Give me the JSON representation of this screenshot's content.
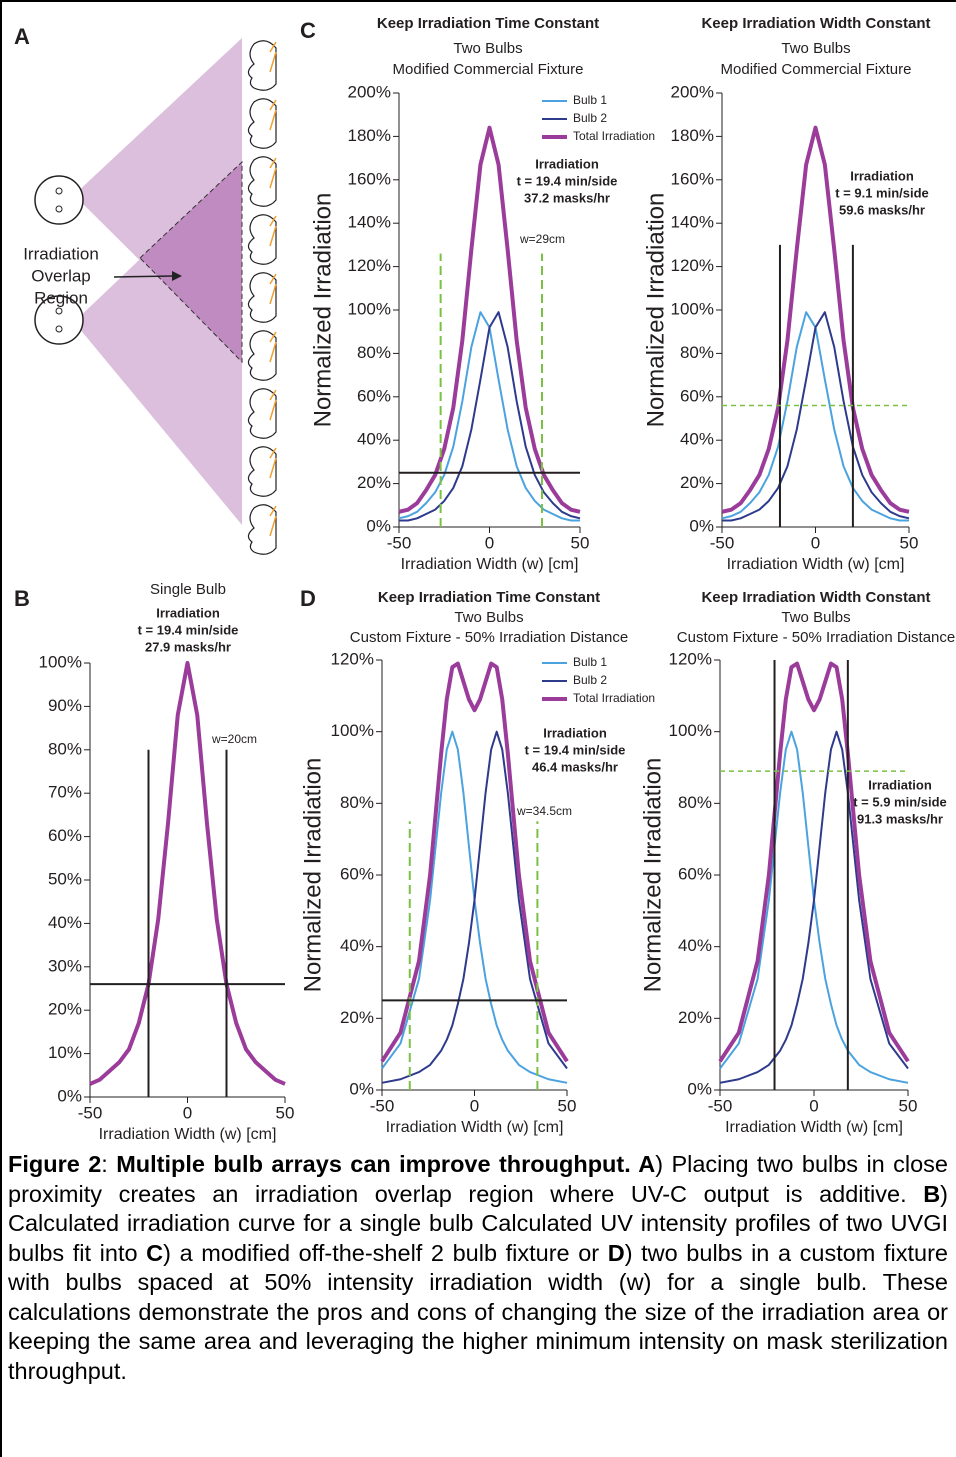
{
  "panel_labels": [
    "A",
    "B",
    "C",
    "D"
  ],
  "diagram": {
    "label": [
      "Irradiation",
      "Overlap",
      "Region"
    ]
  },
  "chart_data": [
    {
      "type": "line",
      "title": "Single Bulb",
      "annotation": [
        "Irradiation",
        "t = 19.4 min/side",
        "27.9 masks/hr"
      ],
      "width_label": "w=20cm",
      "x": [
        -50,
        -45,
        -40,
        -35,
        -30,
        -25,
        -20,
        -15,
        -10,
        -5,
        0,
        5,
        10,
        15,
        20,
        25,
        30,
        35,
        40,
        45,
        50
      ],
      "series": [
        {
          "color": "#9b3c9b",
          "values": [
            3,
            4,
            6,
            8,
            11,
            17,
            26,
            41,
            63,
            88,
            100,
            88,
            63,
            41,
            26,
            17,
            11,
            8,
            6,
            4,
            3
          ]
        }
      ],
      "xlim": [
        -50,
        50
      ],
      "xticks": [
        -50,
        0,
        50
      ],
      "ylim": [
        0,
        100
      ],
      "yticks": [
        {
          "value": 0,
          "label": "0%"
        },
        {
          "value": 10,
          "label": "10%"
        },
        {
          "value": 20,
          "label": "20%"
        },
        {
          "value": 30,
          "label": "30%"
        },
        {
          "value": 40,
          "label": "40%"
        },
        {
          "value": 50,
          "label": "50%"
        },
        {
          "value": 60,
          "label": "60%"
        },
        {
          "value": 70,
          "label": "70%"
        },
        {
          "value": 80,
          "label": "80%"
        },
        {
          "value": 90,
          "label": "90%"
        },
        {
          "value": 100,
          "label": "100%"
        }
      ],
      "xlabel": "Irradiation Width (w) [cm]",
      "legend": false,
      "vlines": {
        "x": [
          -20,
          20
        ],
        "top": 80,
        "color": "#231f20",
        "dashed": false
      },
      "hline": {
        "y": 26,
        "color": "#231f20",
        "dashed": false
      }
    },
    {
      "type": "line",
      "title": "Keep Irradiation Time Constant",
      "subtitle": [
        "Two Bulbs",
        "Modified Commercial Fixture"
      ],
      "annotation": [
        "Irradiation",
        "t = 19.4 min/side",
        "37.2 masks/hr"
      ],
      "width_label": "w=29cm",
      "x": [
        -50,
        -45,
        -40,
        -35,
        -30,
        -25,
        -20,
        -15,
        -10,
        -5,
        0,
        5,
        10,
        15,
        20,
        25,
        30,
        35,
        40,
        45,
        50
      ],
      "series": [
        {
          "name": "Bulb 1",
          "color": "#4aa3df",
          "values": [
            4,
            5,
            7,
            11,
            16,
            24,
            37,
            58,
            83,
            99,
            92,
            68,
            45,
            28,
            18,
            12,
            8,
            6,
            4,
            3,
            3
          ]
        },
        {
          "name": "Bulb 2",
          "color": "#2e3a8c",
          "values": [
            3,
            3,
            4,
            6,
            8,
            12,
            18,
            28,
            45,
            68,
            92,
            99,
            83,
            58,
            37,
            24,
            16,
            11,
            7,
            5,
            4
          ]
        },
        {
          "name": "Total Irradiation",
          "color": "#9b3c9b",
          "values": [
            7,
            8,
            11,
            17,
            24,
            36,
            55,
            86,
            128,
            167,
            184,
            167,
            128,
            86,
            55,
            36,
            24,
            17,
            11,
            8,
            7
          ]
        }
      ],
      "xlim": [
        -50,
        50
      ],
      "xticks": [
        -50,
        0,
        50
      ],
      "ylim": [
        0,
        200
      ],
      "yticks": [
        {
          "value": 0,
          "label": "0%"
        },
        {
          "value": 20,
          "label": "20%"
        },
        {
          "value": 40,
          "label": "40%"
        },
        {
          "value": 60,
          "label": "60%"
        },
        {
          "value": 80,
          "label": "80%"
        },
        {
          "value": 100,
          "label": "100%"
        },
        {
          "value": 120,
          "label": "120%"
        },
        {
          "value": 140,
          "label": "140%"
        },
        {
          "value": 160,
          "label": "160%"
        },
        {
          "value": 180,
          "label": "180%"
        },
        {
          "value": 200,
          "label": "200%"
        }
      ],
      "xlabel": "Irradiation Width (w) [cm]",
      "ylabel": "Normalized Irradiation",
      "legend": true,
      "vlines": {
        "x": [
          -27,
          29
        ],
        "top": 126,
        "color": "#7ac143",
        "dashed": true
      },
      "hline": {
        "y": 25,
        "color": "#231f20",
        "dashed": false
      }
    },
    {
      "type": "line",
      "title": "Keep Irradiation Width Constant",
      "subtitle": [
        "Two Bulbs",
        "Modified Commercial Fixture"
      ],
      "annotation": [
        "Irradiation",
        "t = 9.1 min/side",
        "59.6 masks/hr"
      ],
      "x": [
        -50,
        -45,
        -40,
        -35,
        -30,
        -25,
        -20,
        -15,
        -10,
        -5,
        0,
        5,
        10,
        15,
        20,
        25,
        30,
        35,
        40,
        45,
        50
      ],
      "series": [
        {
          "name": "Bulb 1",
          "color": "#4aa3df",
          "values": [
            4,
            5,
            7,
            11,
            16,
            24,
            37,
            58,
            83,
            99,
            92,
            68,
            45,
            28,
            18,
            12,
            8,
            6,
            4,
            3,
            3
          ]
        },
        {
          "name": "Bulb 2",
          "color": "#2e3a8c",
          "values": [
            3,
            3,
            4,
            6,
            8,
            12,
            18,
            28,
            45,
            68,
            92,
            99,
            83,
            58,
            37,
            24,
            16,
            11,
            7,
            5,
            4
          ]
        },
        {
          "name": "Total Irradiation",
          "color": "#9b3c9b",
          "values": [
            7,
            8,
            11,
            17,
            24,
            36,
            55,
            86,
            128,
            167,
            184,
            167,
            128,
            86,
            55,
            36,
            24,
            17,
            11,
            8,
            7
          ]
        }
      ],
      "xlim": [
        -50,
        50
      ],
      "xticks": [
        -50,
        0,
        50
      ],
      "ylim": [
        0,
        200
      ],
      "yticks": [
        {
          "value": 0,
          "label": "0%"
        },
        {
          "value": 20,
          "label": "20%"
        },
        {
          "value": 40,
          "label": "40%"
        },
        {
          "value": 60,
          "label": "60%"
        },
        {
          "value": 80,
          "label": "80%"
        },
        {
          "value": 100,
          "label": "100%"
        },
        {
          "value": 120,
          "label": "120%"
        },
        {
          "value": 140,
          "label": "140%"
        },
        {
          "value": 160,
          "label": "160%"
        },
        {
          "value": 180,
          "label": "180%"
        },
        {
          "value": 200,
          "label": "200%"
        }
      ],
      "xlabel": "Irradiation Width (w) [cm]",
      "ylabel": "Normalized Irradiation",
      "legend": false,
      "vlines": {
        "x": [
          -19,
          20
        ],
        "top": 130,
        "color": "#231f20",
        "dashed": false
      },
      "hline": {
        "y": 56,
        "color": "#7ac143",
        "dashed": true
      }
    },
    {
      "type": "line",
      "title": "Keep Irradiation Time Constant",
      "subtitle": [
        "Two Bulbs",
        "Custom Fixture - 50% Irradiation Distance"
      ],
      "annotation": [
        "Irradiation",
        "t = 19.4 min/side",
        "46.4 masks/hr"
      ],
      "width_label": "w=34.5cm",
      "x": [
        -50,
        -40,
        -30,
        -24,
        -18,
        -15,
        -12,
        -9,
        -6,
        -3,
        0,
        3,
        6,
        9,
        12,
        15,
        18,
        24,
        30,
        40,
        50
      ],
      "series": [
        {
          "name": "Bulb 1",
          "color": "#4aa3df",
          "values": [
            6,
            13,
            31,
            53,
            83,
            95,
            100,
            95,
            83,
            68,
            53,
            41,
            31,
            24,
            18,
            14,
            11,
            7,
            5,
            3,
            2
          ]
        },
        {
          "name": "Bulb 2",
          "color": "#2e3a8c",
          "values": [
            2,
            3,
            5,
            7,
            11,
            14,
            18,
            24,
            31,
            41,
            53,
            68,
            83,
            95,
            100,
            95,
            83,
            53,
            31,
            13,
            6
          ]
        },
        {
          "name": "Total Irradiation",
          "color": "#9b3c9b",
          "values": [
            8,
            16,
            36,
            60,
            94,
            109,
            118,
            119,
            114,
            109,
            106,
            109,
            114,
            119,
            118,
            109,
            94,
            60,
            36,
            16,
            8
          ]
        }
      ],
      "xlim": [
        -50,
        50
      ],
      "xticks": [
        -50,
        0,
        50
      ],
      "ylim": [
        0,
        120
      ],
      "yticks": [
        {
          "value": 0,
          "label": "0%"
        },
        {
          "value": 20,
          "label": "20%"
        },
        {
          "value": 40,
          "label": "40%"
        },
        {
          "value": 60,
          "label": "60%"
        },
        {
          "value": 80,
          "label": "80%"
        },
        {
          "value": 100,
          "label": "100%"
        },
        {
          "value": 120,
          "label": "120%"
        }
      ],
      "xlabel": "Irradiation Width (w) [cm]",
      "ylabel": "Normalized Irradiation",
      "legend": true,
      "vlines": {
        "x": [
          -35,
          34
        ],
        "top": 75,
        "color": "#7ac143",
        "dashed": true
      },
      "hline": {
        "y": 25,
        "color": "#231f20",
        "dashed": false
      }
    },
    {
      "type": "line",
      "title": "Keep Irradiation Width Constant",
      "subtitle": [
        "Two Bulbs",
        "Custom Fixture - 50% Irradiation Distance"
      ],
      "annotation": [
        "Irradiation",
        "t = 5.9 min/side",
        "91.3 masks/hr"
      ],
      "x": [
        -50,
        -40,
        -30,
        -24,
        -18,
        -15,
        -12,
        -9,
        -6,
        -3,
        0,
        3,
        6,
        9,
        12,
        15,
        18,
        24,
        30,
        40,
        50
      ],
      "series": [
        {
          "name": "Bulb 1",
          "color": "#4aa3df",
          "values": [
            6,
            13,
            31,
            53,
            83,
            95,
            100,
            95,
            83,
            68,
            53,
            41,
            31,
            24,
            18,
            14,
            11,
            7,
            5,
            3,
            2
          ]
        },
        {
          "name": "Bulb 2",
          "color": "#2e3a8c",
          "values": [
            2,
            3,
            5,
            7,
            11,
            14,
            18,
            24,
            31,
            41,
            53,
            68,
            83,
            95,
            100,
            95,
            83,
            53,
            31,
            13,
            6
          ]
        },
        {
          "name": "Total Irradiation",
          "color": "#9b3c9b",
          "values": [
            8,
            16,
            36,
            60,
            94,
            109,
            118,
            119,
            114,
            109,
            106,
            109,
            114,
            119,
            118,
            109,
            94,
            60,
            36,
            16,
            8
          ]
        }
      ],
      "xlim": [
        -50,
        50
      ],
      "xticks": [
        -50,
        0,
        50
      ],
      "ylim": [
        0,
        120
      ],
      "yticks": [
        {
          "value": 0,
          "label": "0%"
        },
        {
          "value": 20,
          "label": "20%"
        },
        {
          "value": 40,
          "label": "40%"
        },
        {
          "value": 60,
          "label": "60%"
        },
        {
          "value": 80,
          "label": "80%"
        },
        {
          "value": 100,
          "label": "100%"
        },
        {
          "value": 120,
          "label": "120%"
        }
      ],
      "xlabel": "Irradiation Width (w) [cm]",
      "ylabel": "Normalized Irradiation",
      "legend": false,
      "vlines": {
        "x": [
          -21,
          18
        ],
        "top": 120,
        "color": "#231f20",
        "dashed": false
      },
      "hline": {
        "y": 89,
        "color": "#7ac143",
        "dashed": true
      }
    }
  ],
  "caption": {
    "parts": [
      "Figure 2",
      ": ",
      "Multiple bulb arrays can improve throughput. A",
      ") Placing two bulbs in close proximity creates an irradiation overlap region where UV-C output is additive. ",
      "B",
      ") Calculated irradiation curve for a single bulb Calculated UV intensity profiles of two UVGI bulbs fit into ",
      "C",
      ") a modified off-the-shelf 2 bulb fixture or ",
      "D",
      ") two bulbs in a custom fixture with bulbs spaced at 50% intensity irradiation width (w) for a single bulb.  These calculations demonstrate the pros and cons of changing the size of the irradiation area or keeping the same area and leveraging the higher minimum intensity on mask sterilization throughput."
    ]
  }
}
